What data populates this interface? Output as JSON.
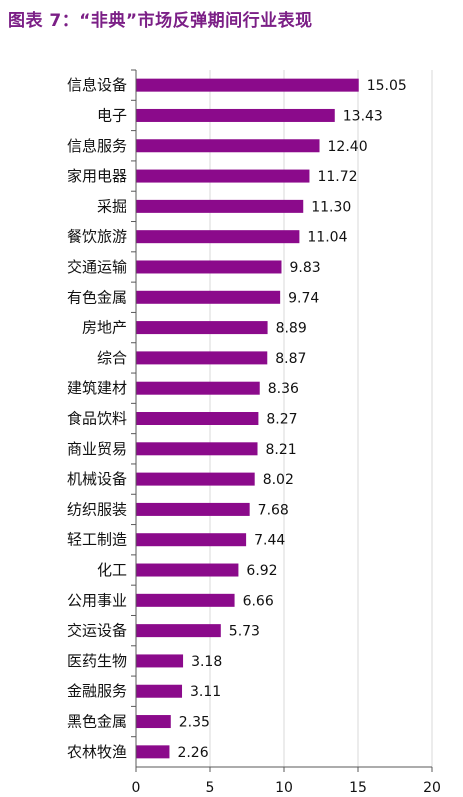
{
  "title": "图表 7：“非典”市场反弹期间行业表现",
  "colors": {
    "bar": "#8b0a8b",
    "title": "#7b1f86",
    "grid": "#d9d9d9"
  },
  "chart_data": {
    "type": "bar",
    "orientation": "horizontal",
    "title": "图表 7：“非典”市场反弹期间行业表现",
    "categories": [
      "信息设备",
      "电子",
      "信息服务",
      "家用电器",
      "采掘",
      "餐饮旅游",
      "交通运输",
      "有色金属",
      "房地产",
      "综合",
      "建筑建材",
      "食品饮料",
      "商业贸易",
      "机械设备",
      "纺织服装",
      "轻工制造",
      "化工",
      "公用事业",
      "交运设备",
      "医药生物",
      "金融服务",
      "黑色金属",
      "农林牧渔"
    ],
    "values": [
      15.05,
      13.43,
      12.4,
      11.72,
      11.3,
      11.04,
      9.83,
      9.74,
      8.89,
      8.87,
      8.36,
      8.27,
      8.21,
      8.02,
      7.68,
      7.44,
      6.92,
      6.66,
      5.73,
      3.18,
      3.11,
      2.35,
      2.26
    ],
    "value_labels": [
      "15.05",
      "13.43",
      "12.40",
      "11.72",
      "11.30",
      "11.04",
      "9.83",
      "9.74",
      "8.89",
      "8.87",
      "8.36",
      "8.27",
      "8.21",
      "8.02",
      "7.68",
      "7.44",
      "6.92",
      "6.66",
      "5.73",
      "3.18",
      "3.11",
      "2.35",
      "2.26"
    ],
    "xlim": [
      0,
      20
    ],
    "xticks": [
      0,
      5,
      10,
      15,
      20
    ],
    "xtick_labels": [
      "0",
      "5",
      "10",
      "15",
      "20"
    ],
    "grid": "vertical",
    "xlabel": "",
    "ylabel": ""
  }
}
